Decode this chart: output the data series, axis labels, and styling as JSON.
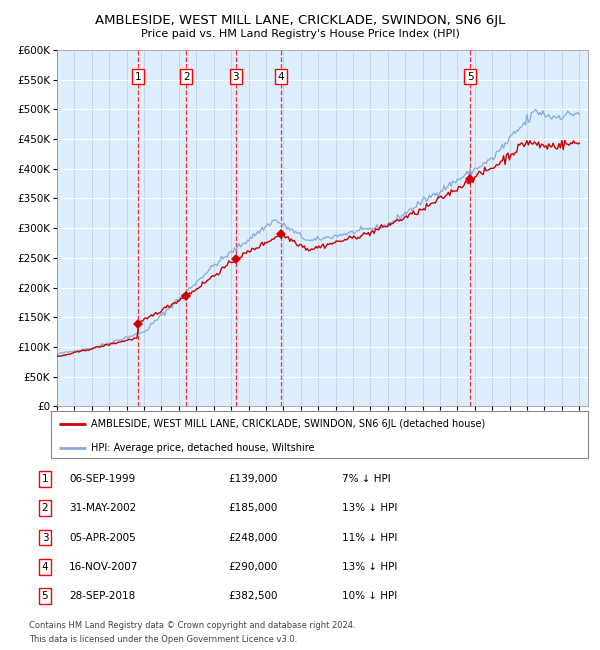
{
  "title": "AMBLESIDE, WEST MILL LANE, CRICKLADE, SWINDON, SN6 6JL",
  "subtitle": "Price paid vs. HM Land Registry's House Price Index (HPI)",
  "ylim": [
    0,
    600000
  ],
  "yticks": [
    0,
    50000,
    100000,
    150000,
    200000,
    250000,
    300000,
    350000,
    400000,
    450000,
    500000,
    550000,
    600000
  ],
  "sales": [
    {
      "num": 1,
      "date": "06-SEP-1999",
      "price": 139000,
      "pct": "7%",
      "year_x": 1999.67
    },
    {
      "num": 2,
      "date": "31-MAY-2002",
      "price": 185000,
      "pct": "13%",
      "year_x": 2002.42
    },
    {
      "num": 3,
      "date": "05-APR-2005",
      "price": 248000,
      "pct": "11%",
      "year_x": 2005.26
    },
    {
      "num": 4,
      "date": "16-NOV-2007",
      "price": 290000,
      "pct": "13%",
      "year_x": 2007.87
    },
    {
      "num": 5,
      "date": "28-SEP-2018",
      "price": 382500,
      "pct": "10%",
      "year_x": 2018.74
    }
  ],
  "legend_line1": "AMBLESIDE, WEST MILL LANE, CRICKLADE, SWINDON, SN6 6JL (detached house)",
  "legend_line2": "HPI: Average price, detached house, Wiltshire",
  "footer1": "Contains HM Land Registry data © Crown copyright and database right 2024.",
  "footer2": "This data is licensed under the Open Government Licence v3.0.",
  "red_color": "#cc0000",
  "blue_color": "#88aadd",
  "bg_color": "#ddeeff",
  "grid_color": "#bbccdd",
  "table_rows": [
    [
      1,
      "06-SEP-1999",
      "£139,000",
      "7% ↓ HPI"
    ],
    [
      2,
      "31-MAY-2002",
      "£185,000",
      "13% ↓ HPI"
    ],
    [
      3,
      "05-APR-2005",
      "£248,000",
      "11% ↓ HPI"
    ],
    [
      4,
      "16-NOV-2007",
      "£290,000",
      "13% ↓ HPI"
    ],
    [
      5,
      "28-SEP-2018",
      "£382,500",
      "10% ↓ HPI"
    ]
  ],
  "xmin": 1995,
  "xmax": 2025.5
}
